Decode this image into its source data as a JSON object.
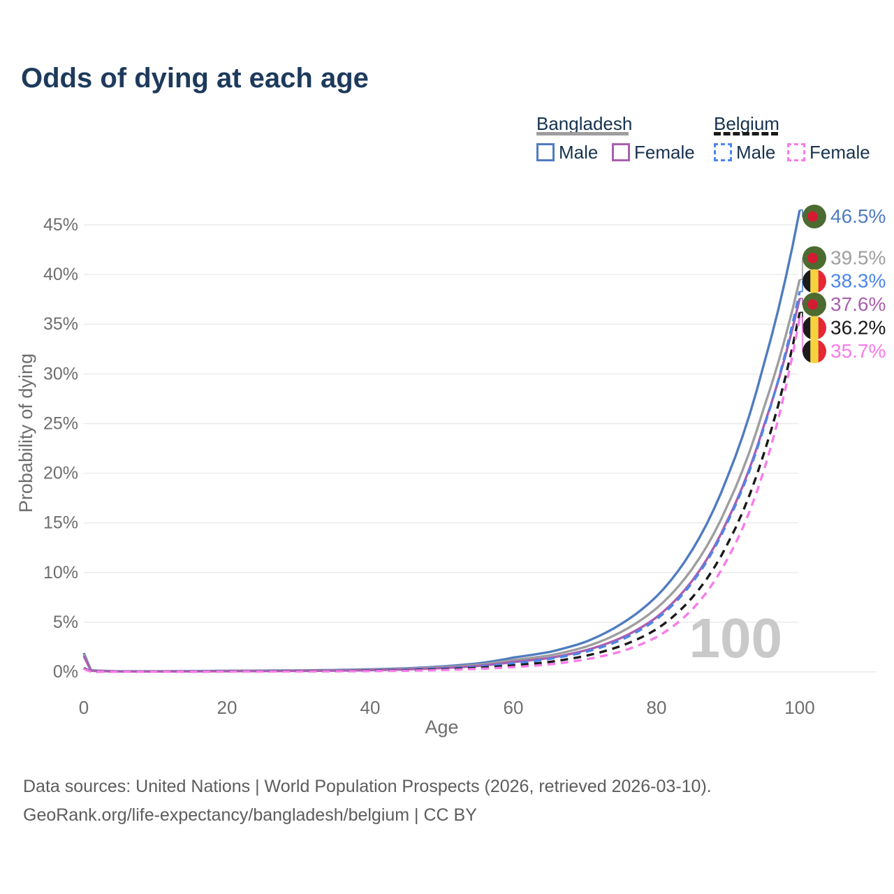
{
  "title": "Odds of dying at each age",
  "legend": {
    "groups": [
      {
        "label": "Bangladesh",
        "underline_style": "solid",
        "underline_color": "#9e9e9e",
        "items": [
          {
            "label": "Male",
            "color": "#4f7cc0",
            "dashed": false
          },
          {
            "label": "Female",
            "color": "#a95fad",
            "dashed": false
          }
        ]
      },
      {
        "label": "Belgium",
        "underline_style": "dashed",
        "underline_color": "#1a1a1a",
        "items": [
          {
            "label": "Male",
            "color": "#4c86ec",
            "dashed": true
          },
          {
            "label": "Female",
            "color": "#f97bea",
            "dashed": true
          }
        ]
      }
    ]
  },
  "chart_data": {
    "type": "line",
    "title": "Odds of dying at each age",
    "xlabel": "Age",
    "ylabel": "Probability of dying",
    "xlim": [
      0,
      100
    ],
    "ylim": [
      0,
      47.5
    ],
    "x_ticks": [
      0,
      20,
      40,
      60,
      80,
      100
    ],
    "y_ticks": [
      0,
      5,
      10,
      15,
      20,
      25,
      30,
      35,
      40,
      45
    ],
    "y_tick_suffix": "%",
    "grid": "horizontal",
    "watermark": "100",
    "series": [
      {
        "name": "Bangladesh Male",
        "country": "Bangladesh",
        "sex": "Male",
        "color": "#4f7cc0",
        "dashed": false,
        "flag": "bangladesh",
        "end_value": 46.5,
        "end_label": "46.5%",
        "points": [
          [
            0,
            1.9
          ],
          [
            1,
            0.16
          ],
          [
            5,
            0.06
          ],
          [
            10,
            0.06
          ],
          [
            15,
            0.08
          ],
          [
            20,
            0.11
          ],
          [
            25,
            0.13
          ],
          [
            30,
            0.15
          ],
          [
            35,
            0.19
          ],
          [
            40,
            0.26
          ],
          [
            45,
            0.36
          ],
          [
            50,
            0.55
          ],
          [
            55,
            0.85
          ],
          [
            60,
            1.45
          ],
          [
            65,
            2.0
          ],
          [
            70,
            3.0
          ],
          [
            75,
            4.8
          ],
          [
            80,
            7.6
          ],
          [
            85,
            12.3
          ],
          [
            90,
            19.8
          ],
          [
            95,
            31.0
          ],
          [
            100,
            46.5
          ]
        ]
      },
      {
        "name": "Bangladesh",
        "country": "Bangladesh",
        "sex": "Both",
        "color": "#9e9e9e",
        "dashed": false,
        "flag": "bangladesh",
        "end_value": 39.5,
        "end_label": "39.5%",
        "points": [
          [
            0,
            1.75
          ],
          [
            1,
            0.14
          ],
          [
            5,
            0.05
          ],
          [
            10,
            0.05
          ],
          [
            15,
            0.07
          ],
          [
            20,
            0.09
          ],
          [
            25,
            0.11
          ],
          [
            30,
            0.13
          ],
          [
            35,
            0.16
          ],
          [
            40,
            0.22
          ],
          [
            45,
            0.31
          ],
          [
            50,
            0.47
          ],
          [
            55,
            0.72
          ],
          [
            60,
            1.2
          ],
          [
            65,
            1.65
          ],
          [
            70,
            2.5
          ],
          [
            75,
            4.0
          ],
          [
            80,
            6.4
          ],
          [
            85,
            10.4
          ],
          [
            90,
            16.9
          ],
          [
            95,
            26.6
          ],
          [
            100,
            39.5
          ]
        ]
      },
      {
        "name": "Bangladesh Female",
        "country": "Bangladesh",
        "sex": "Female",
        "color": "#a95fad",
        "dashed": false,
        "flag": "bangladesh",
        "end_value": 37.6,
        "end_label": "37.6%",
        "points": [
          [
            0,
            1.6
          ],
          [
            1,
            0.12
          ],
          [
            5,
            0.045
          ],
          [
            10,
            0.04
          ],
          [
            15,
            0.05
          ],
          [
            20,
            0.07
          ],
          [
            25,
            0.08
          ],
          [
            30,
            0.1
          ],
          [
            35,
            0.13
          ],
          [
            40,
            0.18
          ],
          [
            45,
            0.25
          ],
          [
            50,
            0.38
          ],
          [
            55,
            0.6
          ],
          [
            60,
            1.0
          ],
          [
            65,
            1.4
          ],
          [
            70,
            2.15
          ],
          [
            75,
            3.4
          ],
          [
            80,
            5.5
          ],
          [
            85,
            9.2
          ],
          [
            90,
            15.4
          ],
          [
            95,
            24.8
          ],
          [
            100,
            37.6
          ]
        ]
      },
      {
        "name": "Belgium Male",
        "country": "Belgium",
        "sex": "Male",
        "color": "#4c86ec",
        "dashed": true,
        "flag": "belgium",
        "end_value": 38.3,
        "end_label": "38.3%",
        "points": [
          [
            0,
            0.4
          ],
          [
            1,
            0.03
          ],
          [
            5,
            0.012
          ],
          [
            10,
            0.012
          ],
          [
            15,
            0.03
          ],
          [
            20,
            0.06
          ],
          [
            25,
            0.07
          ],
          [
            30,
            0.08
          ],
          [
            35,
            0.1
          ],
          [
            40,
            0.14
          ],
          [
            45,
            0.21
          ],
          [
            50,
            0.33
          ],
          [
            55,
            0.52
          ],
          [
            60,
            0.85
          ],
          [
            65,
            1.3
          ],
          [
            70,
            2.0
          ],
          [
            75,
            3.2
          ],
          [
            80,
            5.3
          ],
          [
            85,
            9.0
          ],
          [
            90,
            15.2
          ],
          [
            95,
            24.6
          ],
          [
            100,
            38.3
          ]
        ]
      },
      {
        "name": "Belgium",
        "country": "Belgium",
        "sex": "Both",
        "color": "#1a1a1a",
        "dashed": true,
        "flag": "belgium",
        "end_value": 36.2,
        "end_label": "36.2%",
        "points": [
          [
            0,
            0.35
          ],
          [
            1,
            0.025
          ],
          [
            5,
            0.01
          ],
          [
            10,
            0.01
          ],
          [
            15,
            0.025
          ],
          [
            20,
            0.045
          ],
          [
            25,
            0.055
          ],
          [
            30,
            0.065
          ],
          [
            35,
            0.08
          ],
          [
            40,
            0.11
          ],
          [
            45,
            0.17
          ],
          [
            50,
            0.26
          ],
          [
            55,
            0.41
          ],
          [
            60,
            0.65
          ],
          [
            65,
            1.0
          ],
          [
            70,
            1.6
          ],
          [
            75,
            2.6
          ],
          [
            80,
            4.3
          ],
          [
            85,
            7.5
          ],
          [
            90,
            13.0
          ],
          [
            95,
            22.0
          ],
          [
            100,
            36.2
          ]
        ]
      },
      {
        "name": "Belgium Female",
        "country": "Belgium",
        "sex": "Female",
        "color": "#f97bea",
        "dashed": true,
        "flag": "belgium",
        "end_value": 35.7,
        "end_label": "35.7%",
        "points": [
          [
            0,
            0.3
          ],
          [
            1,
            0.02
          ],
          [
            5,
            0.01
          ],
          [
            10,
            0.01
          ],
          [
            15,
            0.02
          ],
          [
            20,
            0.03
          ],
          [
            25,
            0.035
          ],
          [
            30,
            0.045
          ],
          [
            35,
            0.06
          ],
          [
            40,
            0.08
          ],
          [
            45,
            0.12
          ],
          [
            50,
            0.19
          ],
          [
            55,
            0.3
          ],
          [
            60,
            0.48
          ],
          [
            65,
            0.75
          ],
          [
            70,
            1.25
          ],
          [
            75,
            2.05
          ],
          [
            80,
            3.5
          ],
          [
            85,
            6.3
          ],
          [
            90,
            11.5
          ],
          [
            95,
            20.3
          ],
          [
            100,
            35.7
          ]
        ]
      }
    ],
    "flag_colors": {
      "bangladesh": {
        "field": "#4c6b31",
        "disc": "#d21c32"
      },
      "belgium": {
        "black": "#1c1c1c",
        "yellow": "#f6d33c",
        "red": "#e52834"
      }
    }
  },
  "footer": {
    "line1": "Data sources: United Nations | World Population Prospects (2026, retrieved 2026-03-10).",
    "line2": "GeoRank.org/life-expectancy/bangladesh/belgium | CC BY"
  }
}
